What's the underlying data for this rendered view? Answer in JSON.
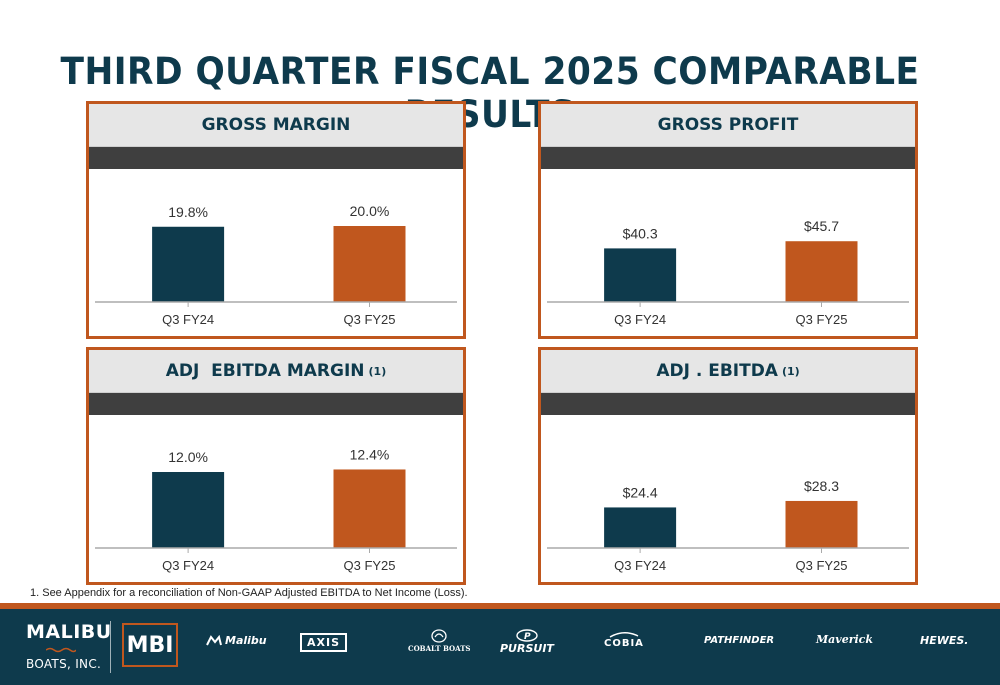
{
  "page": {
    "title": "THIRD QUARTER FISCAL 2025 COMPARABLE RESULTS",
    "footnote": "1. See Appendix for a reconciliation of Non-GAAP Adjusted EBITDA to Net Income (Loss)."
  },
  "colors": {
    "navy": "#0e3a4c",
    "orange": "#c0571e",
    "band": "#3f3f3f",
    "header_bg": "#e6e6e6"
  },
  "chart_data": [
    {
      "type": "bar",
      "title": "GROSS MARGIN",
      "title_sup": "",
      "categories": [
        "Q3 FY24",
        "Q3 FY25"
      ],
      "values": [
        19.8,
        20.0
      ],
      "labels": [
        "19.8%",
        "20.0%"
      ],
      "colors": [
        "#0e3a4c",
        "#c0571e"
      ],
      "ylim": [
        0,
        35
      ]
    },
    {
      "type": "bar",
      "title": "GROSS PROFIT",
      "title_sup": "",
      "categories": [
        "Q3 FY24",
        "Q3 FY25"
      ],
      "values": [
        40.3,
        45.7
      ],
      "labels": [
        "$40.3",
        "$45.7"
      ],
      "colors": [
        "#0e3a4c",
        "#c0571e"
      ],
      "ylim": [
        0,
        100
      ]
    },
    {
      "type": "bar",
      "title": "ADJ  EBITDA MARGIN",
      "title_sup": "(1)",
      "categories": [
        "Q3 FY24",
        "Q3 FY25"
      ],
      "values": [
        12.0,
        12.4
      ],
      "labels": [
        "12.0%",
        "12.4%"
      ],
      "colors": [
        "#0e3a4c",
        "#c0571e"
      ],
      "ylim": [
        0,
        21
      ]
    },
    {
      "type": "bar",
      "title": "ADJ . EBITDA",
      "title_sup": "(1)",
      "categories": [
        "Q3 FY24",
        "Q3 FY25"
      ],
      "values": [
        24.4,
        28.3
      ],
      "labels": [
        "$24.4",
        "$28.3"
      ],
      "colors": [
        "#0e3a4c",
        "#c0571e"
      ],
      "ylim": [
        0,
        80
      ]
    }
  ],
  "footer": {
    "logo_line1": "MALIBU",
    "logo_line2": "BOATS, INC.",
    "logo_mbi": "MBI",
    "brands": [
      {
        "name": "Malibu",
        "icon": "malibu-logo-icon"
      },
      {
        "name": "AXIS",
        "icon": "axis-logo-icon"
      },
      {
        "name": "COBALT BOATS",
        "icon": "cobalt-logo-icon"
      },
      {
        "name": "PURSUIT",
        "icon": "pursuit-logo-icon"
      },
      {
        "name": "COBIA",
        "icon": "cobia-logo-icon"
      },
      {
        "name": "PATHFINDER",
        "icon": "pathfinder-logo-icon"
      },
      {
        "name": "Maverick",
        "icon": "maverick-logo-icon"
      },
      {
        "name": "HEWES.",
        "icon": "hewes-logo-icon"
      }
    ]
  }
}
